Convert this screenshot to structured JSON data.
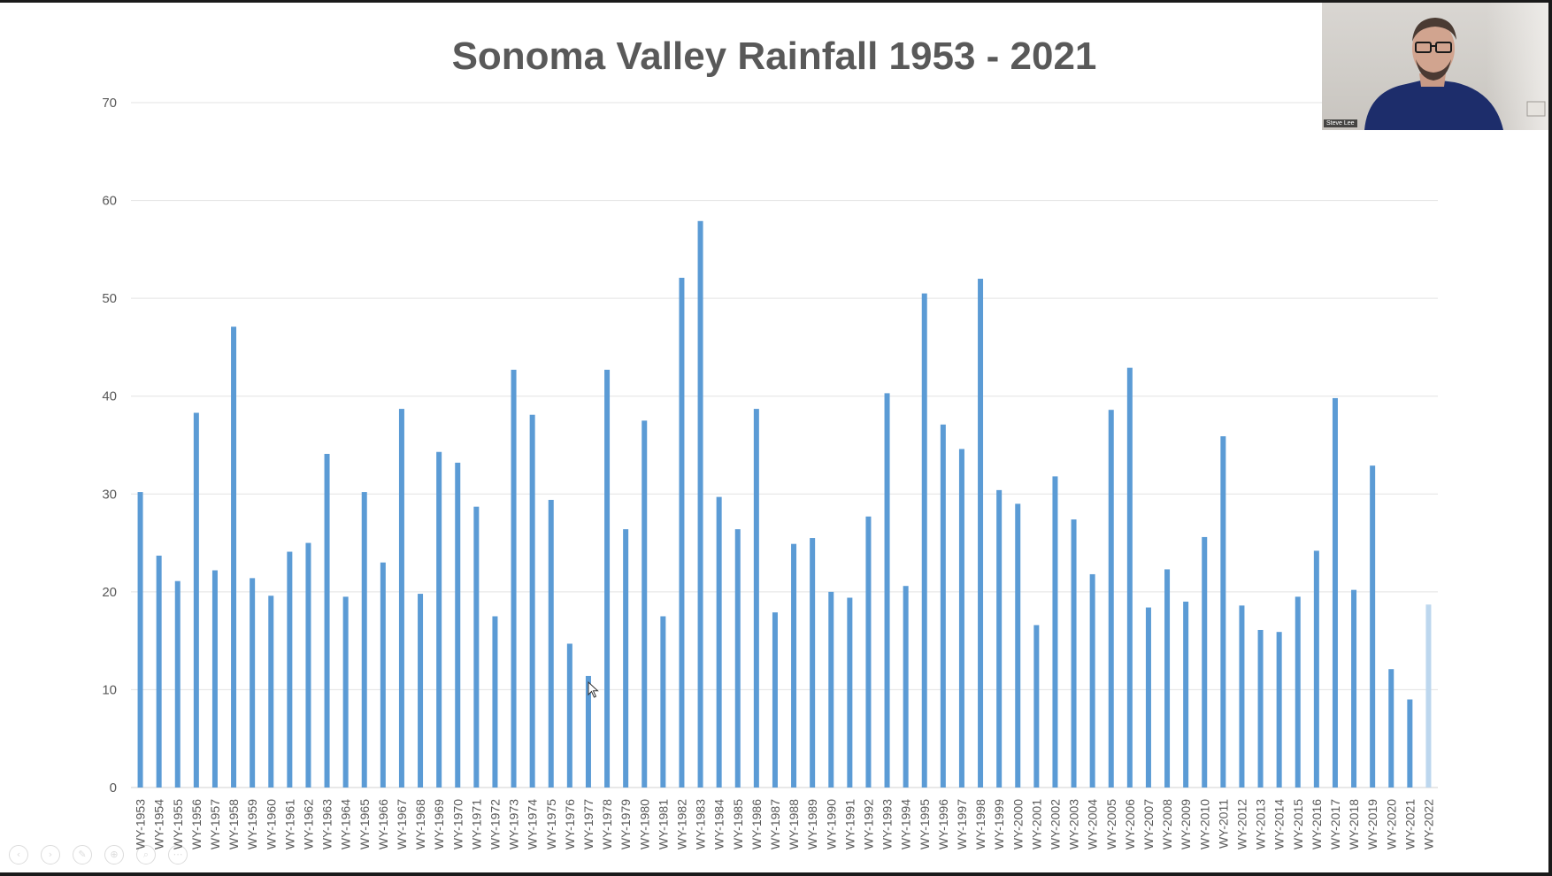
{
  "webcam": {
    "name_tag": "Steve Lee"
  },
  "controls": [
    {
      "name": "previous-slide-icon",
      "glyph": "‹"
    },
    {
      "name": "next-slide-icon",
      "glyph": "›"
    },
    {
      "name": "pen-icon",
      "glyph": "✎"
    },
    {
      "name": "zoom-icon",
      "glyph": "⊕"
    },
    {
      "name": "search-icon",
      "glyph": "⌕"
    },
    {
      "name": "more-options-icon",
      "glyph": "⋯"
    }
  ],
  "chart_data": {
    "type": "bar",
    "title": "Sonoma Valley Rainfall 1953 - 2021",
    "xlabel": "",
    "ylabel": "",
    "ylim": [
      0,
      70
    ],
    "yticks": [
      0,
      10,
      20,
      30,
      40,
      50,
      60,
      70
    ],
    "grid": true,
    "legend": "none",
    "bar_color": "#5b9bd5",
    "highlight_color": "#bdd7ee",
    "categories": [
      "WY-1953",
      "WY-1954",
      "WY-1955",
      "WY-1956",
      "WY-1957",
      "WY-1958",
      "WY-1959",
      "WY-1960",
      "WY-1961",
      "WY-1962",
      "WY-1963",
      "WY-1964",
      "WY-1965",
      "WY-1966",
      "WY-1967",
      "WY-1968",
      "WY-1969",
      "WY-1970",
      "WY-1971",
      "WY-1972",
      "WY-1973",
      "WY-1974",
      "WY-1975",
      "WY-1976",
      "WY-1977",
      "WY-1978",
      "WY-1979",
      "WY-1980",
      "WY-1981",
      "WY-1982",
      "WY-1983",
      "WY-1984",
      "WY-1985",
      "WY-1986",
      "WY-1987",
      "WY-1988",
      "WY-1989",
      "WY-1990",
      "WY-1991",
      "WY-1992",
      "WY-1993",
      "WY-1994",
      "WY-1995",
      "WY-1996",
      "WY-1997",
      "WY-1998",
      "WY-1999",
      "WY-2000",
      "WY-2001",
      "WY-2002",
      "WY-2003",
      "WY-2004",
      "WY-2005",
      "WY-2006",
      "WY-2007",
      "WY-2008",
      "WY-2009",
      "WY-2010",
      "WY-2011",
      "WY-2012",
      "WY-2013",
      "WY-2014",
      "WY-2015",
      "WY-2016",
      "WY-2017",
      "WY-2018",
      "WY-2019",
      "WY-2020",
      "WY-2021",
      "WY-2022"
    ],
    "values": [
      30.2,
      23.7,
      21.1,
      38.3,
      22.2,
      47.1,
      21.4,
      19.6,
      24.1,
      25.0,
      34.1,
      19.5,
      30.2,
      23.0,
      38.7,
      19.8,
      34.3,
      33.2,
      28.7,
      17.5,
      42.7,
      38.1,
      29.4,
      14.7,
      11.4,
      42.7,
      26.4,
      37.5,
      17.5,
      52.1,
      57.9,
      29.7,
      26.4,
      38.7,
      17.9,
      24.9,
      25.5,
      20.0,
      19.4,
      27.7,
      40.3,
      20.6,
      50.5,
      37.1,
      34.6,
      52.0,
      30.4,
      29.0,
      16.6,
      31.8,
      27.4,
      21.8,
      38.6,
      42.9,
      18.4,
      22.3,
      19.0,
      25.6,
      35.9,
      18.6,
      16.1,
      15.9,
      19.5,
      24.2,
      39.8,
      20.2,
      32.9,
      12.1,
      9.0,
      18.7
    ],
    "highlighted_categories": [
      "WY-2022"
    ]
  }
}
